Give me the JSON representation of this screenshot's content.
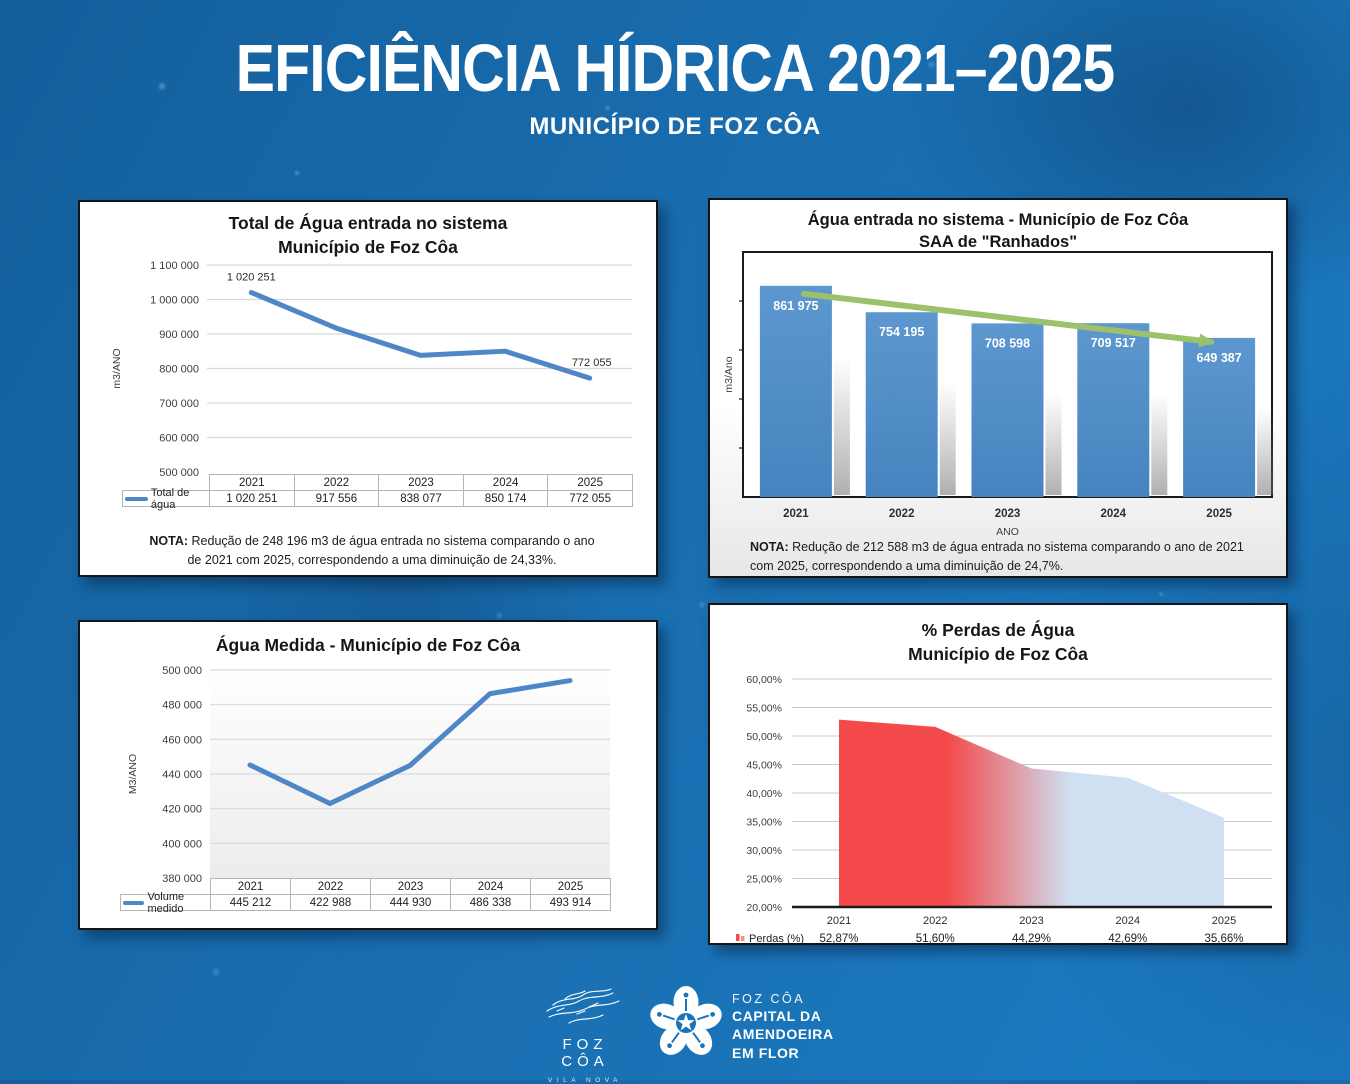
{
  "header": {
    "title": "EFICIÊNCIA HÍDRICA 2021–2025",
    "subtitle": "MUNICÍPIO DE FOZ CÔA"
  },
  "colors": {
    "line_blue": "#4F86C6",
    "bar_blue_top": "#5D97CF",
    "bar_blue_bottom": "#4684BF",
    "arrow_green": "#9BC26B",
    "loss_red": "#F3494A",
    "loss_light_blue": "#CFE0F2",
    "grid_gray": "#D9D9D9",
    "background_blue": "#1A70B2"
  },
  "chart_data": [
    {
      "id": "total-agua-entrada",
      "type": "line",
      "title": "Total de Água entrada no sistema",
      "title2": "Município de Foz Côa",
      "ylabel": "m3/ANO",
      "categories": [
        "2021",
        "2022",
        "2023",
        "2024",
        "2025"
      ],
      "series": [
        {
          "name": "Total de água",
          "values": [
            1020251,
            917556,
            838077,
            850174,
            772055
          ]
        }
      ],
      "table_values": [
        "1 020 251",
        "917 556",
        "838 077",
        "850 174",
        "772 055"
      ],
      "point_labels": {
        "first": "1 020 251",
        "last": "772 055"
      },
      "yticks": [
        "1 100 000",
        "1 000 000",
        "900 000",
        "800 000",
        "700 000",
        "600 000",
        "500 000"
      ],
      "ylim": [
        500000,
        1100000
      ],
      "grid": true,
      "note_label": "NOTA:",
      "note_text": " Redução de 248 196 m3 de água entrada no sistema comparando o ano de 2021 com 2025, correspondendo a uma diminuição de 24,33%."
    },
    {
      "id": "agua-entrada-ranhados",
      "type": "bar",
      "title": "Água entrada no sistema - Município de Foz Côa",
      "title2": "SAA de \"Ranhados\"",
      "xlabel": "ANO",
      "ylabel": "m3/Ano",
      "categories": [
        "2021",
        "2022",
        "2023",
        "2024",
        "2025"
      ],
      "values": [
        861975,
        754195,
        708598,
        709517,
        649387
      ],
      "bar_labels": [
        "861 975",
        "754 195",
        "708 598",
        "709 517",
        "649 387"
      ],
      "ylim": [
        0,
        1000000
      ],
      "grid": false,
      "trend_arrow": "down",
      "note_label": "NOTA:",
      "note_text": " Redução de 212 588 m3 de água entrada no sistema comparando o ano de 2021 com 2025, correspondendo a uma diminuição de 24,7%."
    },
    {
      "id": "agua-medida",
      "type": "line",
      "title": "Água Medida - Município de Foz Côa",
      "ylabel": "M3/ANO",
      "categories": [
        "2021",
        "2022",
        "2023",
        "2024",
        "2025"
      ],
      "series": [
        {
          "name": "Volume medido",
          "values": [
            445212,
            422988,
            444930,
            486338,
            493914
          ]
        }
      ],
      "table_values": [
        "445 212",
        "422 988",
        "444 930",
        "486 338",
        "493 914"
      ],
      "yticks": [
        "500 000",
        "480 000",
        "460 000",
        "440 000",
        "420 000",
        "400 000",
        "380 000"
      ],
      "ylim": [
        380000,
        500000
      ],
      "grid": true
    },
    {
      "id": "perdas-agua",
      "type": "area",
      "title": "% Perdas de Água",
      "title2": "Município de Foz Côa",
      "categories": [
        "2021",
        "2022",
        "2023",
        "2024",
        "2025"
      ],
      "values": [
        52.87,
        51.6,
        44.29,
        42.69,
        35.66
      ],
      "value_labels": [
        "52,87%",
        "51,60%",
        "44,29%",
        "42,69%",
        "35,66%"
      ],
      "legend": "Perdas (%)",
      "yticks": [
        "60,00%",
        "55,00%",
        "50,00%",
        "45,00%",
        "40,00%",
        "35,00%",
        "30,00%",
        "25,00%",
        "20,00%"
      ],
      "ylim": [
        20,
        60
      ],
      "grid": true
    }
  ],
  "footer": {
    "logo1_name": "FOZ CÔA",
    "logo1_sub": "VILA NOVA",
    "logo2_line1": "FOZ CÔA",
    "logo2_line2": "CAPITAL DA",
    "logo2_line3": "AMENDOEIRA",
    "logo2_line4": "EM FLOR"
  }
}
